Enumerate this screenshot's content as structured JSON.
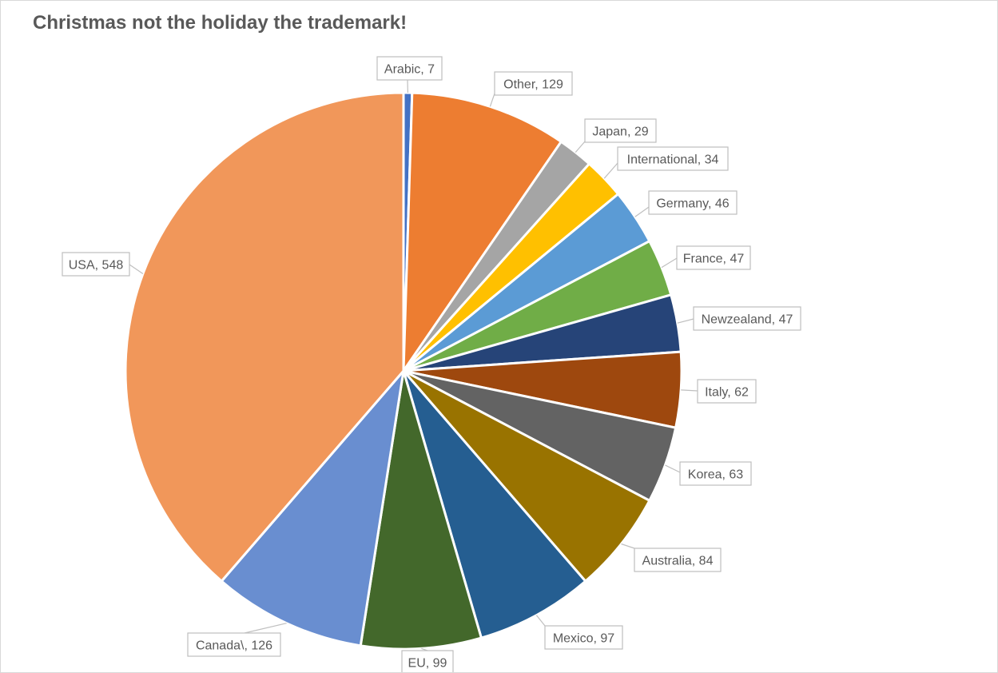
{
  "chart_data": {
    "type": "pie",
    "title": "Christmas not the holiday the trademark!",
    "start_angle_deg": 90,
    "direction": "clockwise",
    "legend": "none",
    "slices": [
      {
        "label": "Arabic",
        "value": 7,
        "color": "#4472c4",
        "display": "Arabic, 7"
      },
      {
        "label": "Other",
        "value": 129,
        "color": "#ed7d31",
        "display": "Other, 129"
      },
      {
        "label": "Japan",
        "value": 29,
        "color": "#a5a5a5",
        "display": "Japan, 29"
      },
      {
        "label": "International",
        "value": 34,
        "color": "#ffc000",
        "display": "International, 34"
      },
      {
        "label": "Germany",
        "value": 46,
        "color": "#5b9bd5",
        "display": "Germany, 46"
      },
      {
        "label": "France",
        "value": 47,
        "color": "#70ad47",
        "display": "France, 47"
      },
      {
        "label": "Newzealand",
        "value": 47,
        "color": "#264478",
        "display": "Newzealand, 47"
      },
      {
        "label": "Italy",
        "value": 62,
        "color": "#9e480e",
        "display": "Italy, 62"
      },
      {
        "label": "Korea",
        "value": 63,
        "color": "#636363",
        "display": "Korea, 63"
      },
      {
        "label": "Australia",
        "value": 84,
        "color": "#997300",
        "display": "Australia, 84"
      },
      {
        "label": "Mexico",
        "value": 97,
        "color": "#255e91",
        "display": "Mexico, 97"
      },
      {
        "label": "EU",
        "value": 99,
        "color": "#43682b",
        "display": "EU, 99"
      },
      {
        "label": "Canada\\",
        "value": 126,
        "color": "#698ed0",
        "display": "Canada\\, 126"
      },
      {
        "label": "USA",
        "value": 548,
        "color": "#f1975a",
        "display": "USA, 548"
      }
    ]
  }
}
